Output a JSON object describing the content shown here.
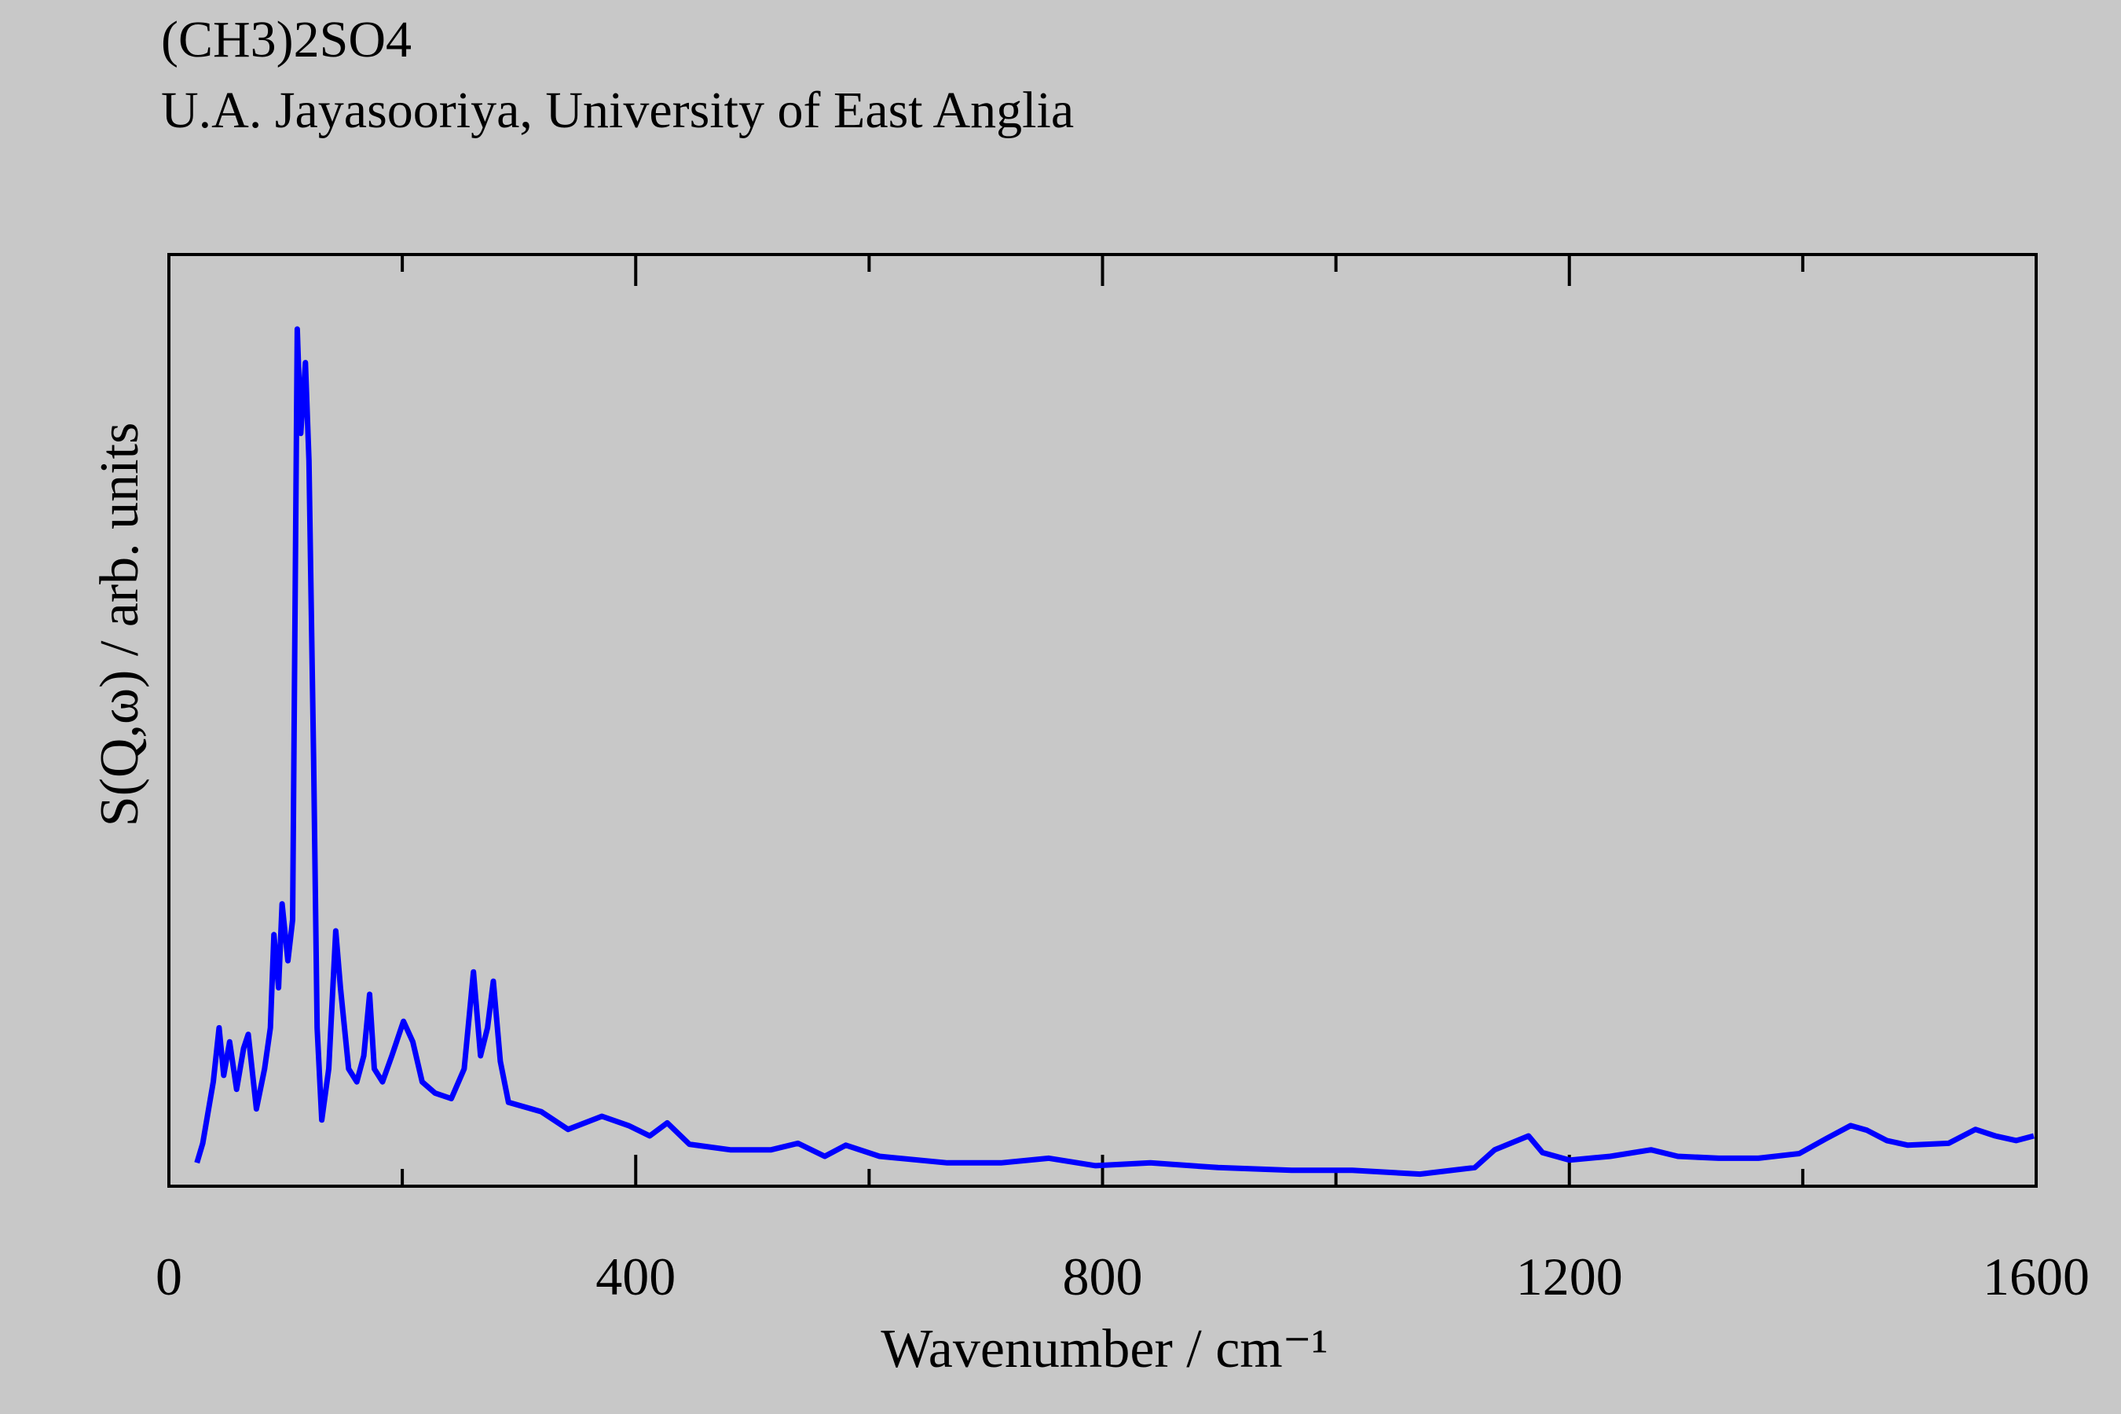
{
  "chart_data": {
    "type": "line",
    "title": "(CH3)2SO4",
    "subtitle": "U.A. Jayasooriya, University of East Anglia",
    "xlabel": "Wavenumber / cm⁻¹",
    "ylabel": "S(Q,ω) / arb. units",
    "color": "#0000ff",
    "xlim": [
      0,
      1600
    ],
    "ylim": [
      0,
      100
    ],
    "xticks": [
      0,
      400,
      800,
      1200,
      1600
    ],
    "xminor_ticks": [
      200,
      600,
      1000,
      1400
    ],
    "x": [
      24,
      29,
      35,
      38,
      43,
      47,
      52,
      58,
      64,
      68,
      75,
      82,
      87,
      90,
      94,
      97,
      102,
      106,
      110,
      113,
      117,
      120,
      124,
      127,
      131,
      137,
      143,
      147,
      154,
      161,
      167,
      172,
      176,
      183,
      191,
      201,
      209,
      217,
      228,
      242,
      253,
      261,
      267,
      273,
      278,
      284,
      291,
      319,
      342,
      371,
      394,
      412,
      427,
      446,
      481,
      516,
      539,
      562,
      580,
      609,
      667,
      713,
      754,
      794,
      841,
      899,
      962,
      1014,
      1072,
      1119,
      1136,
      1165,
      1177,
      1200,
      1235,
      1270,
      1293,
      1328,
      1362,
      1397,
      1420,
      1441,
      1455,
      1472,
      1490,
      1525,
      1548,
      1565,
      1583,
      1598
    ],
    "values": [
      2.5,
      4.6,
      9,
      11.2,
      17,
      11.9,
      15.5,
      10.4,
      14.8,
      16.3,
      8.3,
      12.6,
      17,
      27,
      21.3,
      30.3,
      24.2,
      28.6,
      92,
      80.8,
      88.4,
      77.9,
      46,
      17,
      7.1,
      12.6,
      27.4,
      21.3,
      12.6,
      11.2,
      14,
      20.6,
      12.6,
      11.2,
      14,
      17.7,
      15.5,
      11.2,
      10,
      9.4,
      12.6,
      23,
      14,
      17,
      22,
      13.4,
      9,
      8,
      6.1,
      7.5,
      6.5,
      5.4,
      6.8,
      4.5,
      3.9,
      3.9,
      4.6,
      3.2,
      4.4,
      3.2,
      2.5,
      2.5,
      3,
      2.2,
      2.5,
      2,
      1.7,
      1.7,
      1.3,
      2,
      3.9,
      5.4,
      3.6,
      2.8,
      3.2,
      3.9,
      3.2,
      3,
      3,
      3.5,
      5.1,
      6.5,
      6,
      4.9,
      4.4,
      4.6,
      6.1,
      5.4,
      4.9,
      5.4
    ]
  }
}
